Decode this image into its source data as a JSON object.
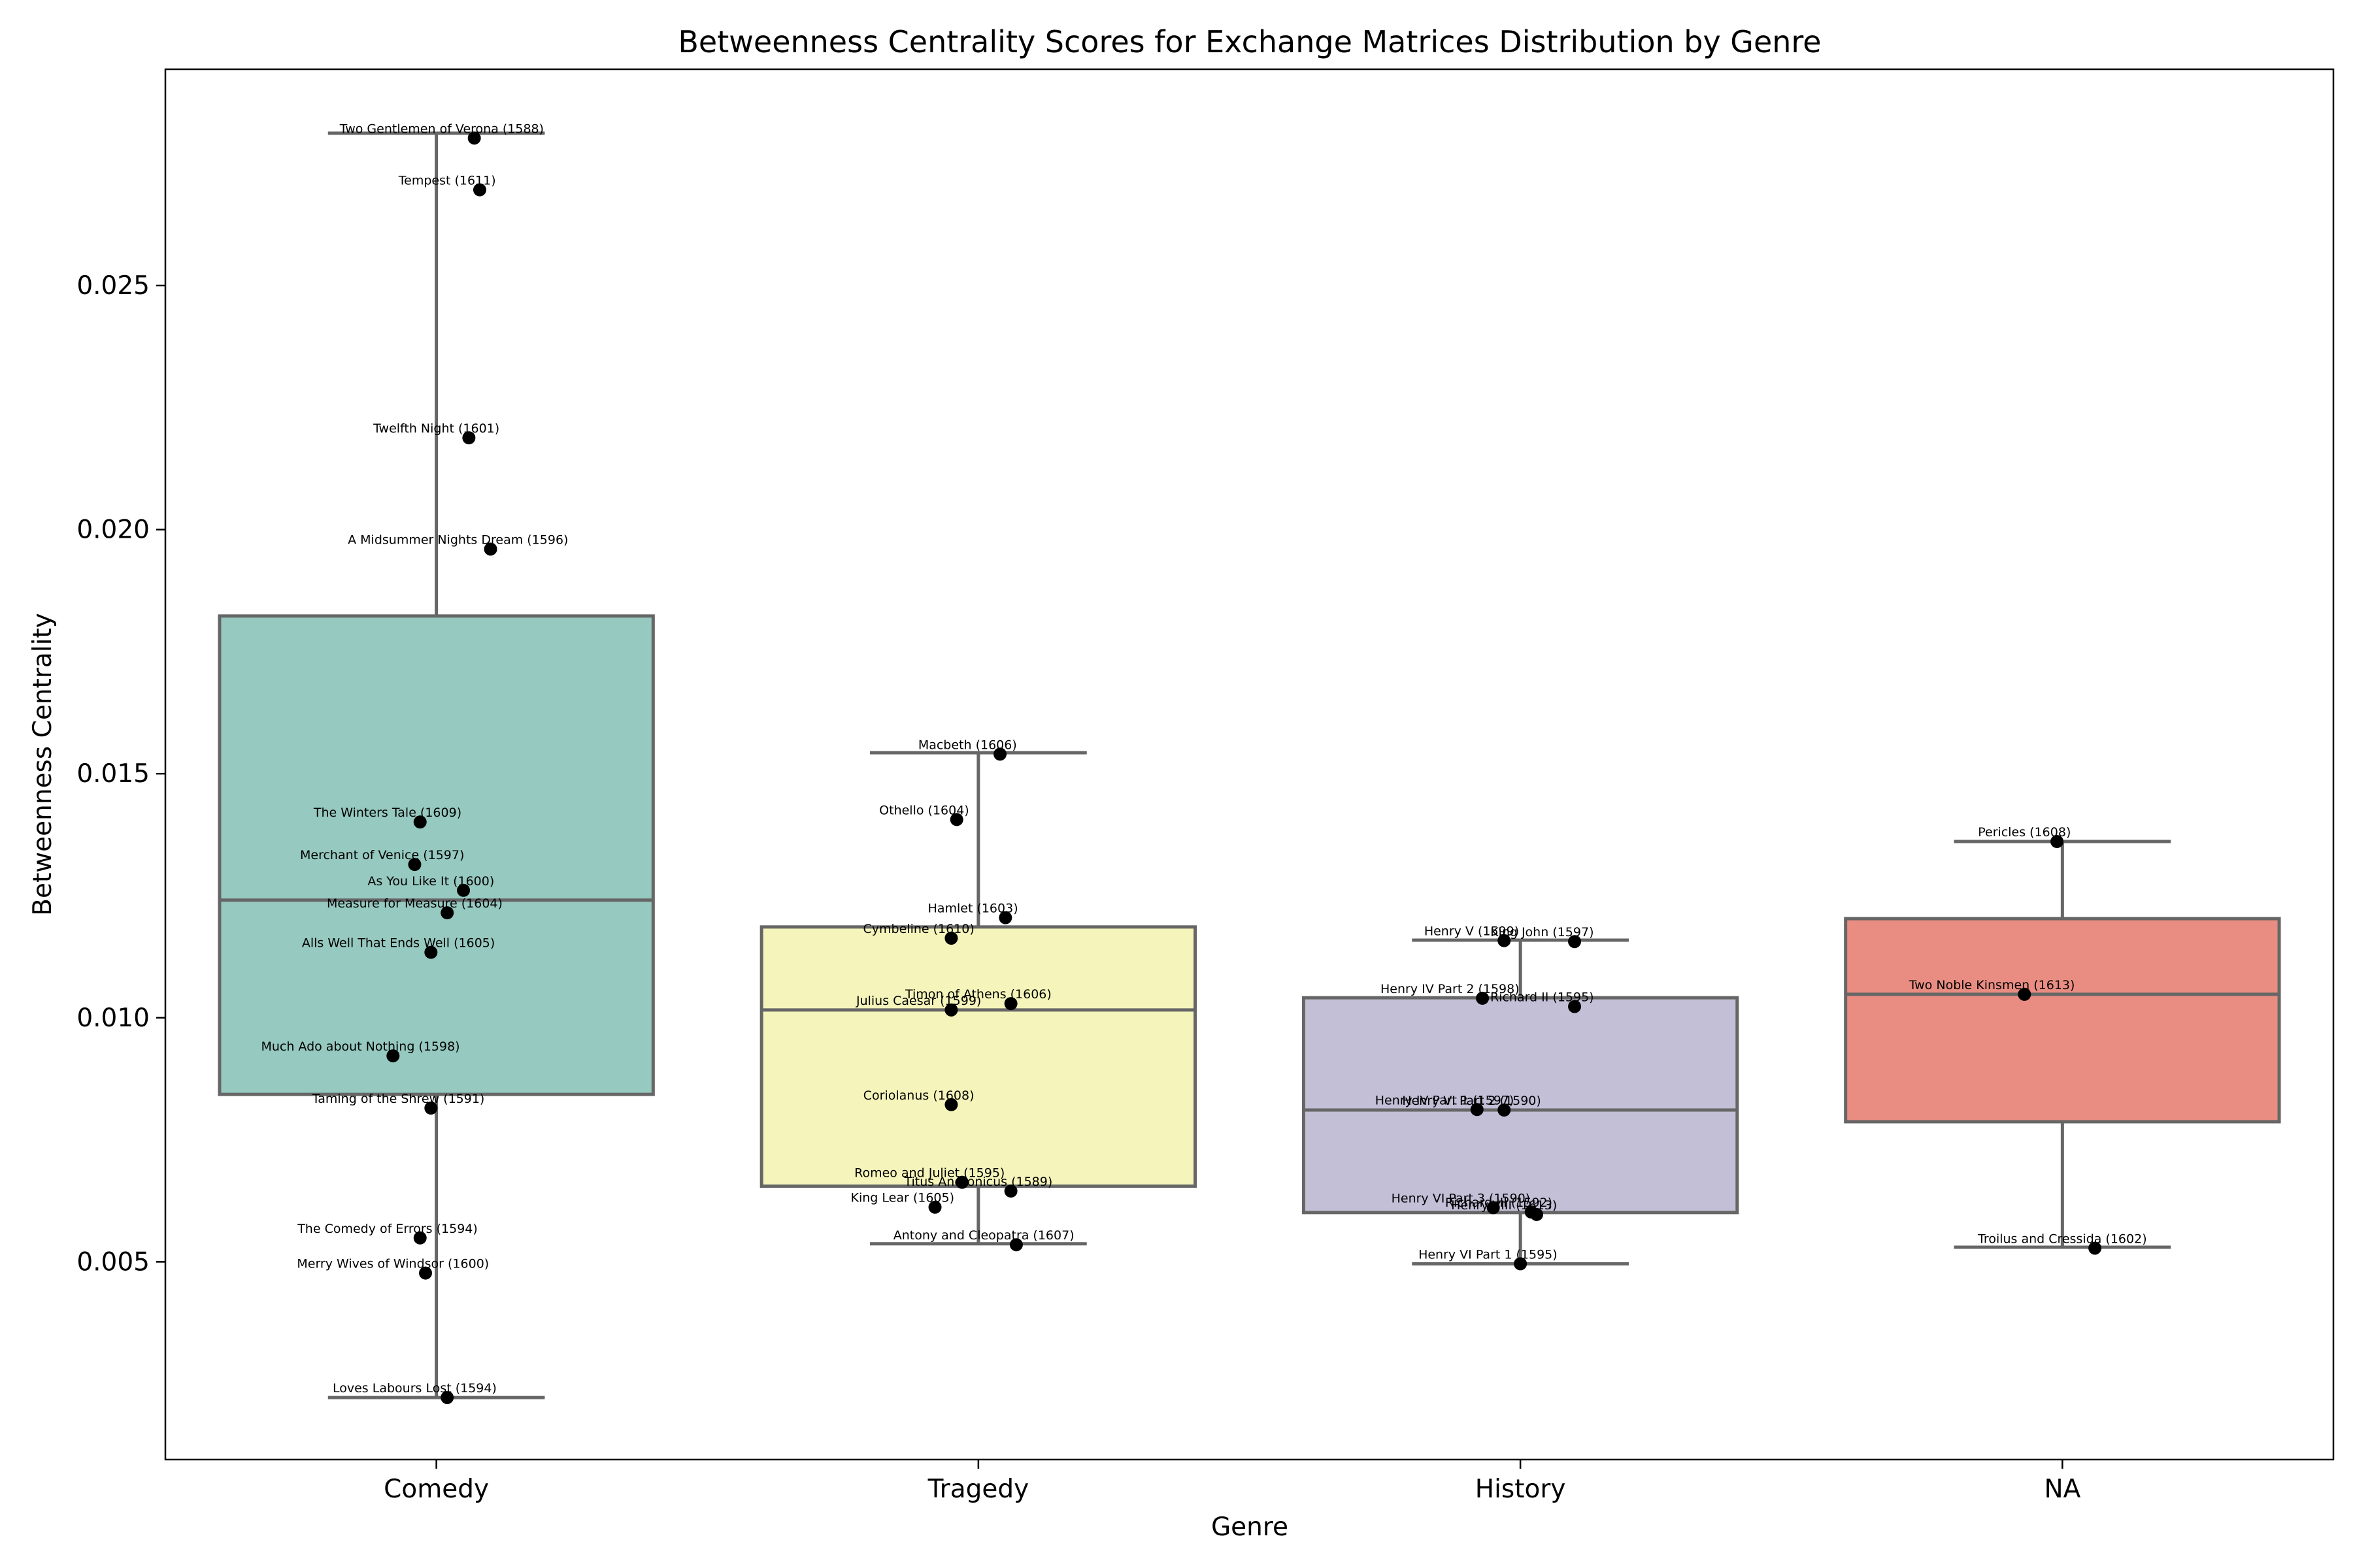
{
  "chart_data": {
    "type": "box",
    "title": "Betweenness Centrality Scores for Exchange Matrices Distribution by Genre",
    "xlabel": "Genre",
    "ylabel": "Betweenness Centrality",
    "ylim": [
      0.00095,
      0.02943
    ],
    "yticks": [
      0.005,
      0.01,
      0.015,
      0.02,
      0.025
    ],
    "ytick_labels": [
      "0.005",
      "0.010",
      "0.015",
      "0.020",
      "0.025"
    ],
    "grid": false,
    "categories": [
      "Comedy",
      "Tragedy",
      "History",
      "NA"
    ],
    "box_colors": [
      "#96c9c0",
      "#f5f5bb",
      "#c2bfd7",
      "#e98d82"
    ],
    "edge_color": "#666666",
    "point_color": "#000000",
    "boxes": [
      {
        "category": "Comedy",
        "whisker_low": 0.00222,
        "q1": 0.00843,
        "median": 0.01241,
        "q3": 0.01823,
        "whisker_high": 0.02812
      },
      {
        "category": "Tragedy",
        "whisker_low": 0.00537,
        "q1": 0.00655,
        "median": 0.01016,
        "q3": 0.01186,
        "whisker_high": 0.01543
      },
      {
        "category": "History",
        "whisker_low": 0.00496,
        "q1": 0.00601,
        "median": 0.00811,
        "q3": 0.01041,
        "whisker_high": 0.01159
      },
      {
        "category": "NA",
        "whisker_low": 0.0053,
        "q1": 0.00787,
        "median": 0.01048,
        "q3": 0.01203,
        "whisker_high": 0.01361
      }
    ],
    "points": [
      {
        "category": "Comedy",
        "label": "Two Gentlemen of Verona (1588)",
        "y": 0.02802,
        "jitter": 0.07
      },
      {
        "category": "Comedy",
        "label": "Tempest (1611)",
        "y": 0.02696,
        "jitter": 0.08
      },
      {
        "category": "Comedy",
        "label": "Twelfth Night (1601)",
        "y": 0.02188,
        "jitter": 0.06
      },
      {
        "category": "Comedy",
        "label": "A Midsummer Nights Dream (1596)",
        "y": 0.0196,
        "jitter": 0.1
      },
      {
        "category": "Comedy",
        "label": "The Winters Tale (1609)",
        "y": 0.01401,
        "jitter": -0.03
      },
      {
        "category": "Comedy",
        "label": "Merchant of Venice (1597)",
        "y": 0.01314,
        "jitter": -0.04
      },
      {
        "category": "Comedy",
        "label": "As You Like It (1600)",
        "y": 0.01261,
        "jitter": 0.05
      },
      {
        "category": "Comedy",
        "label": "Measure for Measure (1604)",
        "y": 0.01215,
        "jitter": 0.02
      },
      {
        "category": "Comedy",
        "label": "Alls Well That Ends Well (1605)",
        "y": 0.01134,
        "jitter": -0.01
      },
      {
        "category": "Comedy",
        "label": "Much Ado about Nothing (1598)",
        "y": 0.00922,
        "jitter": -0.08
      },
      {
        "category": "Comedy",
        "label": "Taming of the Shrew (1591)",
        "y": 0.00815,
        "jitter": -0.01
      },
      {
        "category": "Comedy",
        "label": "The Comedy of Errors (1594)",
        "y": 0.00549,
        "jitter": -0.03
      },
      {
        "category": "Comedy",
        "label": "Merry Wives of Windsor (1600)",
        "y": 0.00477,
        "jitter": -0.02
      },
      {
        "category": "Comedy",
        "label": "Loves Labours Lost (1594)",
        "y": 0.00222,
        "jitter": 0.02
      },
      {
        "category": "Tragedy",
        "label": "Macbeth (1606)",
        "y": 0.0154,
        "jitter": 0.04
      },
      {
        "category": "Tragedy",
        "label": "Othello (1604)",
        "y": 0.01406,
        "jitter": -0.04
      },
      {
        "category": "Tragedy",
        "label": "Hamlet (1603)",
        "y": 0.01205,
        "jitter": 0.05
      },
      {
        "category": "Tragedy",
        "label": "Cymbeline (1610)",
        "y": 0.01163,
        "jitter": -0.05
      },
      {
        "category": "Tragedy",
        "label": "Timon of Athens (1606)",
        "y": 0.01029,
        "jitter": 0.06
      },
      {
        "category": "Tragedy",
        "label": "Julius Caesar (1599)",
        "y": 0.01016,
        "jitter": -0.05
      },
      {
        "category": "Tragedy",
        "label": "Coriolanus (1608)",
        "y": 0.00822,
        "jitter": -0.05
      },
      {
        "category": "Tragedy",
        "label": "Romeo and Juliet (1595)",
        "y": 0.00663,
        "jitter": -0.03
      },
      {
        "category": "Tragedy",
        "label": "Titus Andronicus (1589)",
        "y": 0.00645,
        "jitter": 0.06
      },
      {
        "category": "Tragedy",
        "label": "King Lear (1605)",
        "y": 0.00612,
        "jitter": -0.08
      },
      {
        "category": "Tragedy",
        "label": "Antony and Cleopatra (1607)",
        "y": 0.00535,
        "jitter": 0.07
      },
      {
        "category": "History",
        "label": "Henry V (1599)",
        "y": 0.01158,
        "jitter": -0.03
      },
      {
        "category": "History",
        "label": "King John (1597)",
        "y": 0.01156,
        "jitter": 0.1
      },
      {
        "category": "History",
        "label": "Henry IV Part 2 (1598)",
        "y": 0.0104,
        "jitter": -0.07
      },
      {
        "category": "History",
        "label": "Richard II (1595)",
        "y": 0.01023,
        "jitter": 0.1
      },
      {
        "category": "History",
        "label": "Henry IV Part 1 (1597)",
        "y": 0.00812,
        "jitter": -0.08
      },
      {
        "category": "History",
        "label": "Henry VI Part 2 (1590)",
        "y": 0.00811,
        "jitter": -0.03
      },
      {
        "category": "History",
        "label": "Henry VI Part 3 (1590)",
        "y": 0.00611,
        "jitter": -0.05
      },
      {
        "category": "History",
        "label": "Richard III (1592)",
        "y": 0.00602,
        "jitter": 0.02
      },
      {
        "category": "History",
        "label": "Henry VIII (1613)",
        "y": 0.00597,
        "jitter": 0.03
      },
      {
        "category": "History",
        "label": "Henry VI Part 1 (1595)",
        "y": 0.00496,
        "jitter": 0.0
      },
      {
        "category": "NA",
        "label": "Pericles (1608)",
        "y": 0.01361,
        "jitter": -0.01
      },
      {
        "category": "NA",
        "label": "Two Noble Kinsmen (1613)",
        "y": 0.01048,
        "jitter": -0.07
      },
      {
        "category": "NA",
        "label": "Troilus and Cressida (1602)",
        "y": 0.00528,
        "jitter": 0.06
      }
    ]
  }
}
